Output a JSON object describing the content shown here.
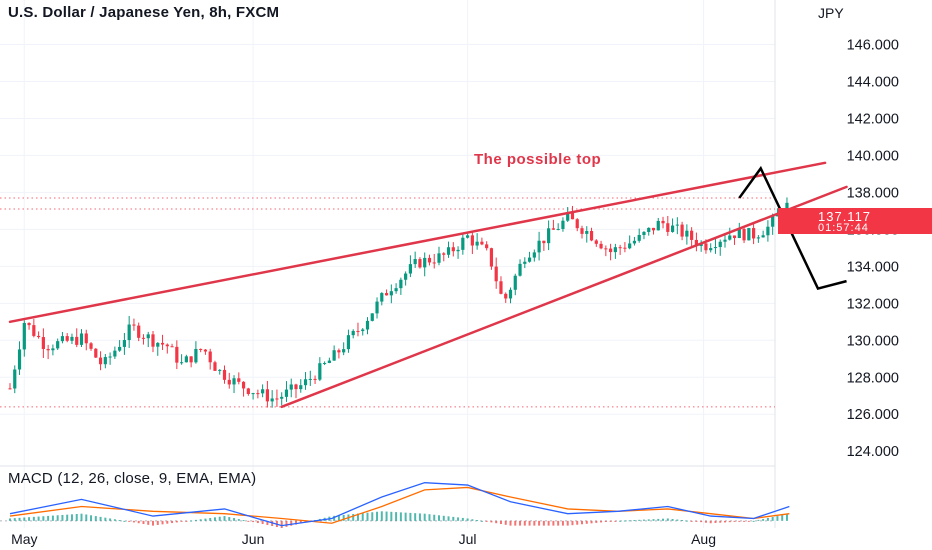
{
  "header": {
    "title": "U.S. Dollar / Japanese Yen, 8h, FXCM",
    "currency": "JPY"
  },
  "annotation": "The possible top",
  "price_label": {
    "price": "137.117",
    "countdown": "01:57:44"
  },
  "macd_title": "MACD (12, 26, close, 9, EMA, EMA)",
  "colors": {
    "up": "#089981",
    "down": "#f23645",
    "trendline": "#e0364a",
    "macd": "#2962ff",
    "signal": "#ff6d00",
    "arrow": "#000000"
  },
  "chart_data": [
    {
      "type": "candlestick",
      "title": "U.S. Dollar / Japanese Yen, 8h, FXCM",
      "ylabel": "JPY",
      "ylim": [
        123.2,
        148.3
      ],
      "xlim": [
        "Apr 30",
        "Aug 8"
      ],
      "x_ticks": [
        "May",
        "Jun",
        "Jul",
        "Aug"
      ],
      "y_ticks": [
        "124.000",
        "126.000",
        "128.000",
        "130.000",
        "132.000",
        "134.000",
        "136.000",
        "138.000",
        "140.000",
        "142.000",
        "144.000",
        "146.000"
      ],
      "current_price": 137.117,
      "price_path": [
        [
          0,
          127.4
        ],
        [
          2,
          131.0
        ],
        [
          5,
          129.7
        ],
        [
          10,
          130.1
        ],
        [
          13,
          128.6
        ],
        [
          17,
          130.7
        ],
        [
          20,
          130.0
        ],
        [
          22,
          129.7
        ],
        [
          24,
          128.7
        ],
        [
          27,
          129.6
        ],
        [
          29,
          128.4
        ],
        [
          32,
          127.6
        ],
        [
          37,
          126.8
        ],
        [
          41,
          127.6
        ],
        [
          45,
          129.0
        ],
        [
          49,
          130.7
        ],
        [
          53,
          132.8
        ],
        [
          57,
          134.2
        ],
        [
          61,
          134.6
        ],
        [
          64,
          135.6
        ],
        [
          67,
          134.6
        ],
        [
          69,
          132.0
        ],
        [
          72,
          134.6
        ],
        [
          75,
          135.6
        ],
        [
          78,
          136.6
        ],
        [
          81,
          135.8
        ],
        [
          84,
          134.8
        ],
        [
          88,
          135.5
        ],
        [
          91,
          136.4
        ],
        [
          94,
          135.8
        ],
        [
          97,
          135.1
        ],
        [
          101,
          135.8
        ],
        [
          104,
          135.7
        ],
        [
          106,
          136.1
        ],
        [
          109,
          137.4
        ]
      ],
      "candles_per_unit": 1.5,
      "overlays": {
        "upper_trendline": [
          [
            0,
            131.0
          ],
          [
            114,
            139.6
          ]
        ],
        "lower_trendline": [
          [
            38,
            126.4
          ],
          [
            117,
            138.3
          ]
        ],
        "dotted_levels": [
          137.7,
          137.1,
          126.4
        ],
        "projected_path": [
          [
            102,
            137.7
          ],
          [
            105,
            139.3
          ],
          [
            113,
            132.8
          ],
          [
            117,
            133.2
          ]
        ]
      }
    },
    {
      "type": "line",
      "title": "MACD (12, 26, close, 9, EMA, EMA)",
      "ylim": [
        -0.3,
        2.3
      ],
      "y_ticks": [
        "0.000",
        "2.000"
      ],
      "series": [
        {
          "values": [
            [
              0,
              0.3
            ],
            [
              10,
              0.9
            ],
            [
              20,
              0.2
            ],
            [
              30,
              0.5
            ],
            [
              38,
              -0.2
            ],
            [
              45,
              0.1
            ],
            [
              52,
              1.0
            ],
            [
              58,
              1.6
            ],
            [
              64,
              1.5
            ],
            [
              70,
              0.8
            ],
            [
              78,
              0.3
            ],
            [
              85,
              0.4
            ],
            [
              92,
              0.6
            ],
            [
              98,
              0.2
            ],
            [
              104,
              0.1
            ],
            [
              109,
              0.6
            ]
          ]
        },
        {
          "values": [
            [
              0,
              0.2
            ],
            [
              10,
              0.6
            ],
            [
              20,
              0.4
            ],
            [
              30,
              0.3
            ],
            [
              38,
              0.1
            ],
            [
              45,
              -0.1
            ],
            [
              52,
              0.6
            ],
            [
              58,
              1.3
            ],
            [
              64,
              1.4
            ],
            [
              70,
              1.0
            ],
            [
              78,
              0.5
            ],
            [
              85,
              0.4
            ],
            [
              92,
              0.5
            ],
            [
              98,
              0.3
            ],
            [
              104,
              0.1
            ],
            [
              109,
              0.3
            ]
          ]
        }
      ]
    }
  ]
}
